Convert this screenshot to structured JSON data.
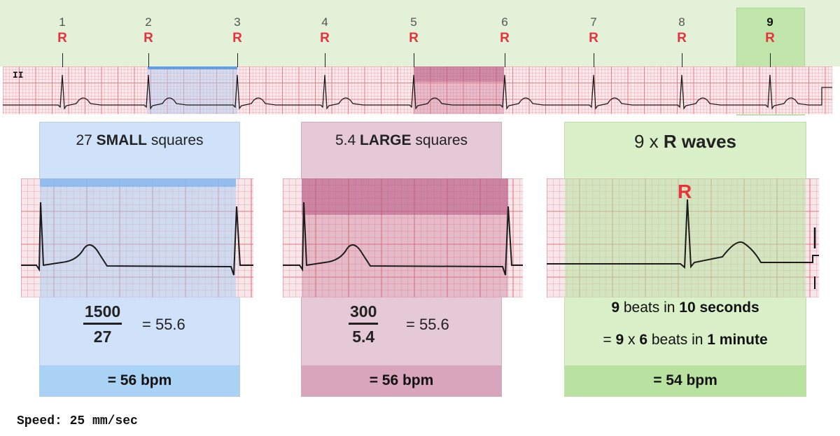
{
  "strip": {
    "lead_label": "II",
    "beats": [
      {
        "num": "1",
        "r": "R"
      },
      {
        "num": "2",
        "r": "R"
      },
      {
        "num": "3",
        "r": "R"
      },
      {
        "num": "4",
        "r": "R"
      },
      {
        "num": "5",
        "r": "R"
      },
      {
        "num": "6",
        "r": "R"
      },
      {
        "num": "7",
        "r": "R"
      },
      {
        "num": "8",
        "r": "R"
      },
      {
        "num": "9",
        "r": "R"
      }
    ]
  },
  "panels": {
    "small": {
      "count": "27",
      "bold": "SMALL",
      "rest": "squares",
      "numerator": "1500",
      "denominator": "27",
      "equals": "= 55.6",
      "result": "= 56 bpm"
    },
    "large": {
      "count": "5.4",
      "bold": "LARGE",
      "rest": "squares",
      "numerator": "300",
      "denominator": "5.4",
      "equals": "= 55.6",
      "result": "= 56 bpm"
    },
    "rwaves": {
      "count": "9 x",
      "bold": "R waves",
      "r_label": "R",
      "line1_a": "9",
      "line1_b": "beats in",
      "line1_c": "10 seconds",
      "line2_a": "= ",
      "line2_b": "9",
      "line2_c": "x",
      "line2_d": "6",
      "line2_e": "beats in",
      "line2_f": "1 minute",
      "result": "= 54 bpm"
    }
  },
  "speed_label": "Speed: 25 mm/sec",
  "colors": {
    "r_red": "#e8313a",
    "blue_panel": "#cfe2f9",
    "blue_footer": "#a9d2f5",
    "pink_panel": "#e6c9d6",
    "pink_footer": "#d9a5bd",
    "green_panel": "#d9f0c8",
    "green_footer": "#b9e2a1",
    "grid_red": "#e8838a",
    "trace": "#1c1c1c"
  }
}
